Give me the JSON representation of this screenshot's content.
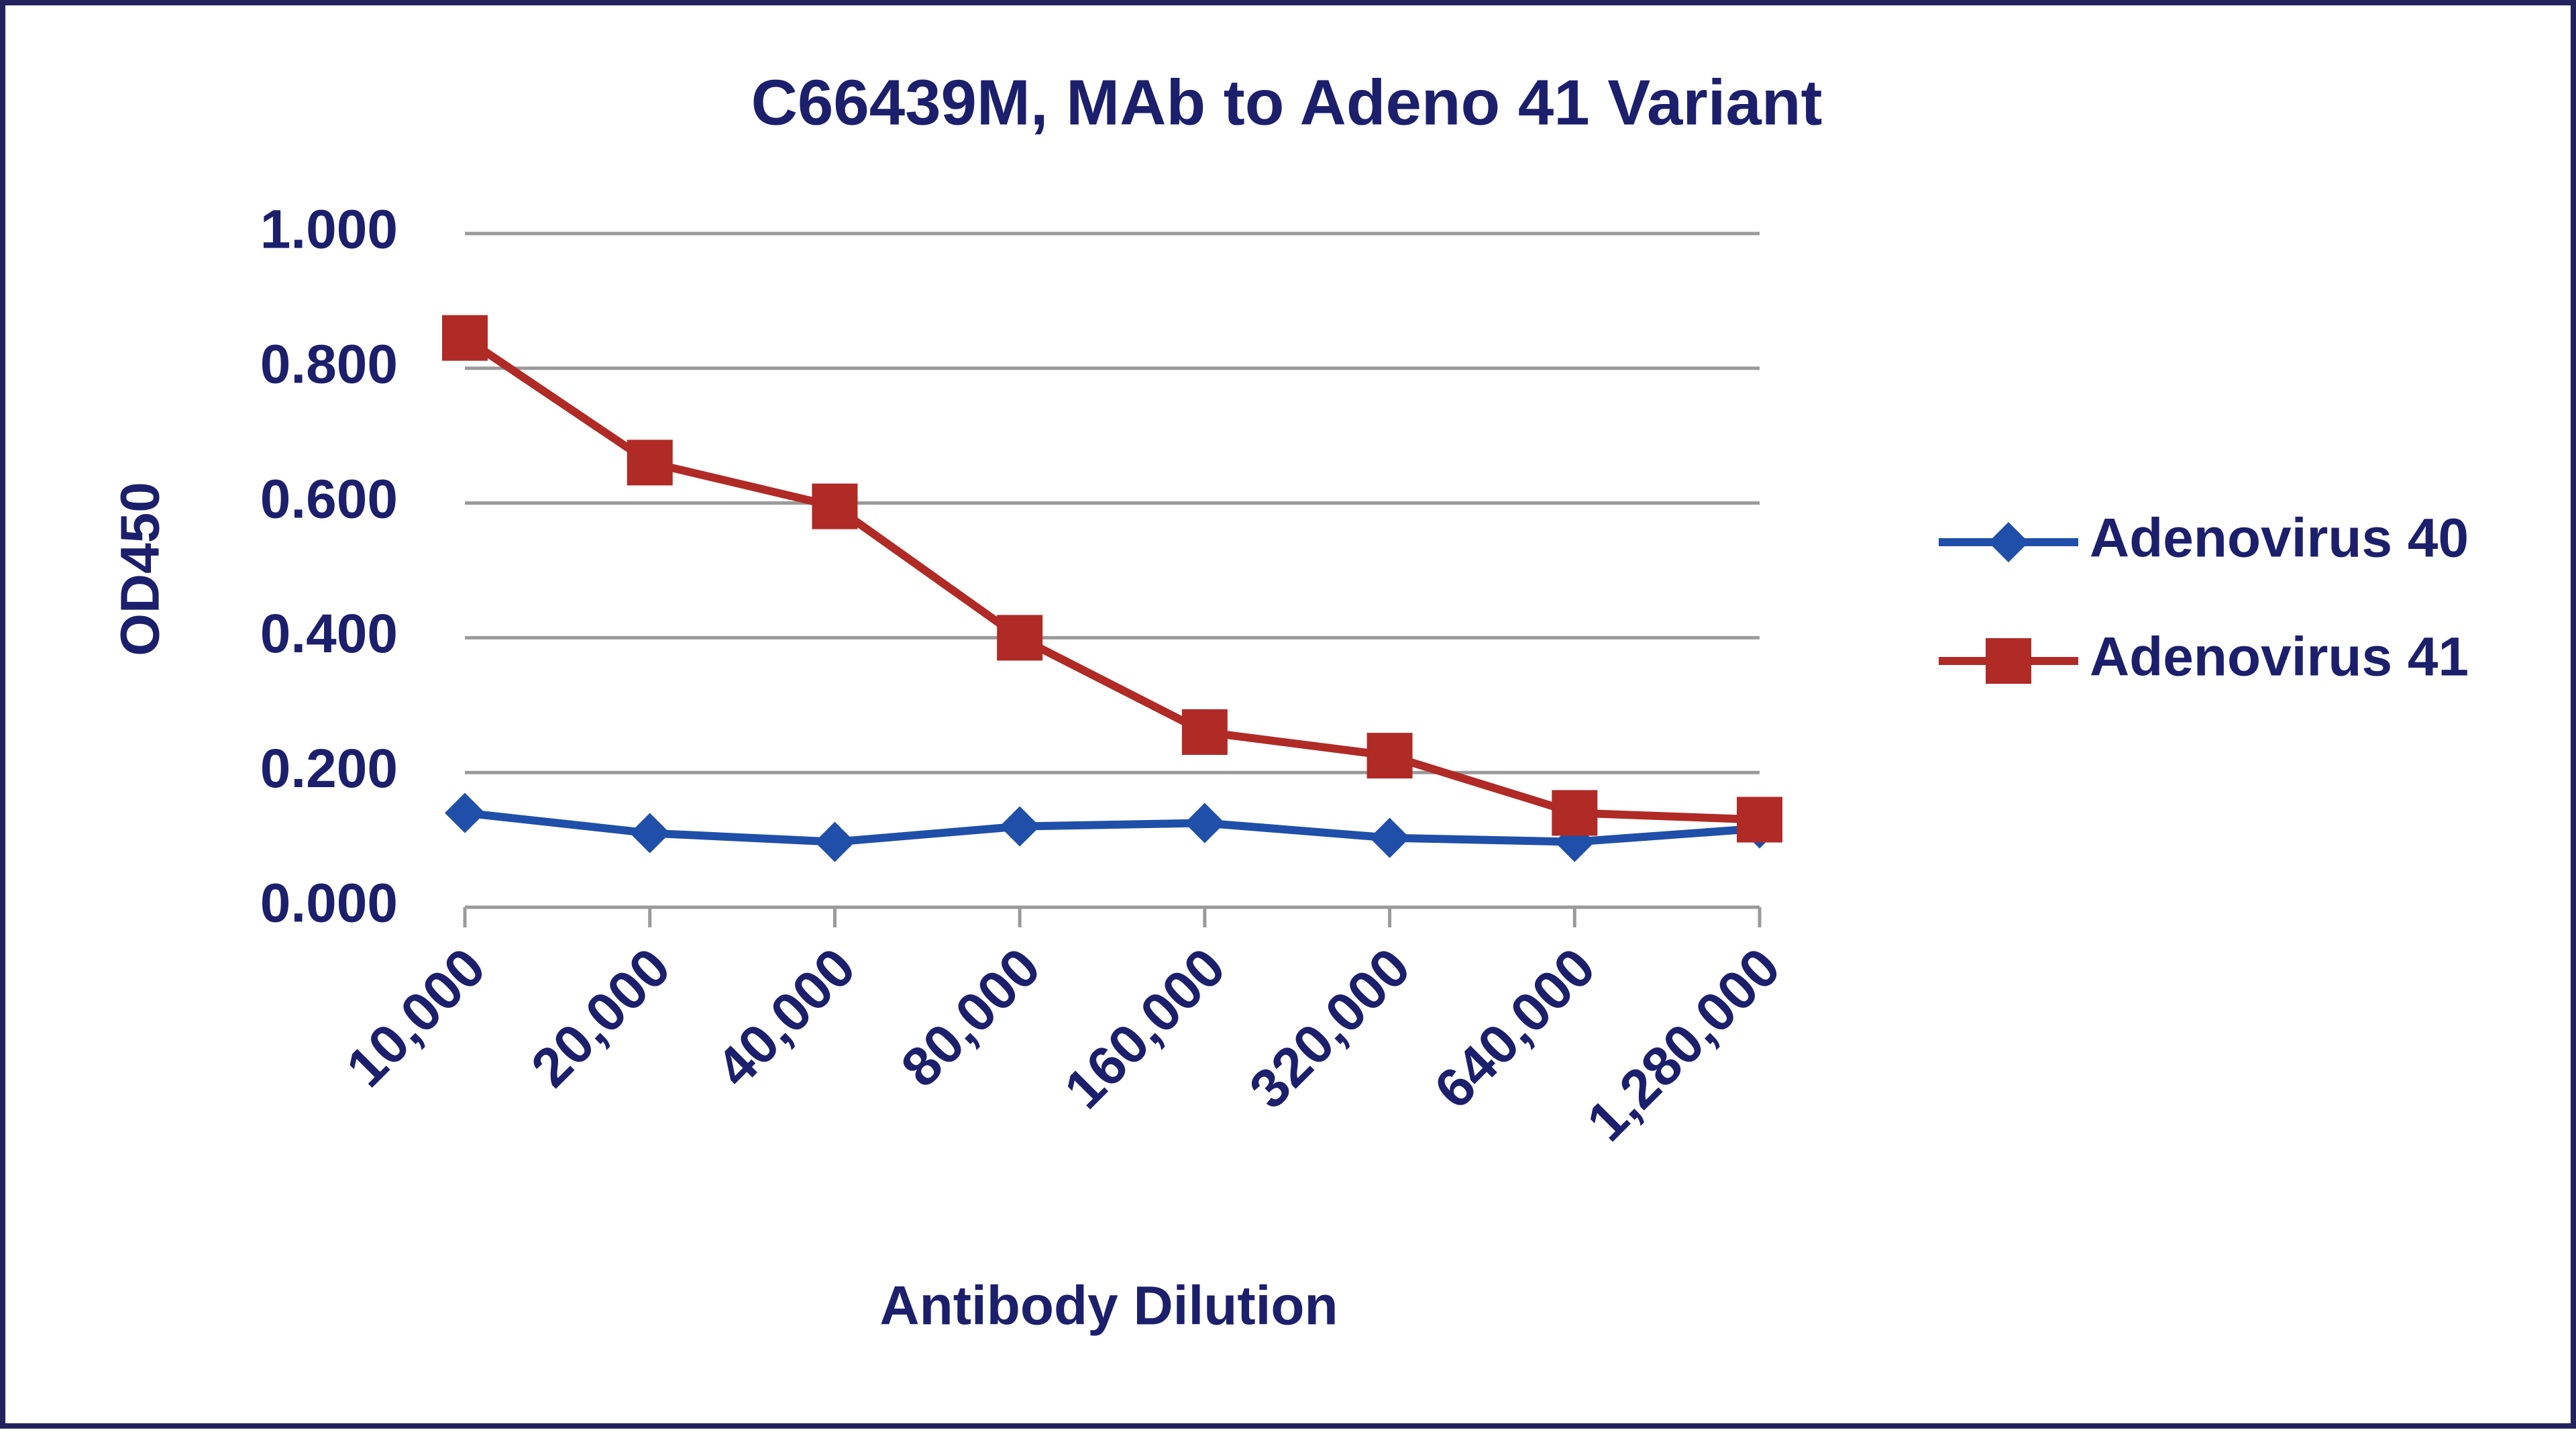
{
  "chart_data": {
    "type": "line",
    "title": "C66439M, MAb to Adeno 41 Variant",
    "x_label": "Antibody Dilution",
    "y_label": "OD450",
    "categories": [
      "10,000",
      "20,000",
      "40,000",
      "80,000",
      "160,000",
      "320,000",
      "640,000",
      "1,280,000"
    ],
    "series": [
      {
        "name": "Adenovirus 40",
        "color": "#1f4fa8",
        "marker": "diamond",
        "values": [
          0.14,
          0.11,
          0.097,
          0.12,
          0.125,
          0.103,
          0.097,
          0.117
        ]
      },
      {
        "name": "Adenovirus 41",
        "color": "#b02a26",
        "marker": "square",
        "values": [
          0.845,
          0.66,
          0.595,
          0.4,
          0.26,
          0.225,
          0.14,
          0.13
        ]
      }
    ],
    "ylim": [
      0,
      1
    ],
    "yticks": [
      {
        "value": 0,
        "label": "0.000"
      },
      {
        "value": 0.2,
        "label": "0.200"
      },
      {
        "value": 0.4,
        "label": "0.400"
      },
      {
        "value": 0.6,
        "label": "0.600"
      },
      {
        "value": 0.8,
        "label": "0.800"
      },
      {
        "value": 1,
        "label": "1.000"
      }
    ],
    "grid": true,
    "legend": "right"
  }
}
